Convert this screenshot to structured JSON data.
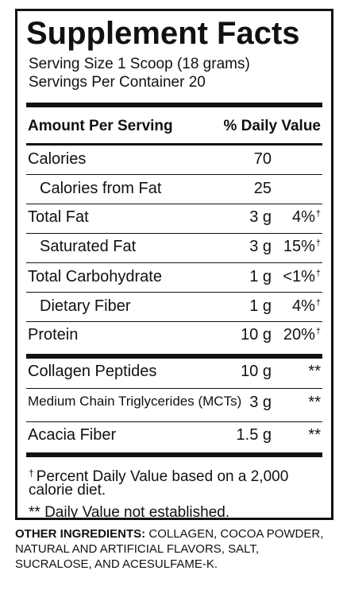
{
  "label": {
    "title": "Supplement Facts",
    "serving_size": "Serving Size 1 Scoop (18 grams)",
    "servings_per_container": "Servings Per Container 20",
    "header_amount": "Amount Per Serving",
    "header_dv": "% Daily Value",
    "rows": [
      {
        "name": "Calories",
        "amount": "70",
        "dv": "",
        "dagger": ""
      },
      {
        "name": "Calories from Fat",
        "amount": "25",
        "dv": "",
        "dagger": ""
      },
      {
        "name": "Total Fat",
        "amount": "3 g",
        "dv": "4%",
        "dagger": "†"
      },
      {
        "name": "Saturated Fat",
        "amount": "3 g",
        "dv": "15%",
        "dagger": "†"
      },
      {
        "name": "Total Carbohydrate",
        "amount": "1 g",
        "dv": "<1%",
        "dagger": "†"
      },
      {
        "name": "Dietary Fiber",
        "amount": "1 g",
        "dv": "4%",
        "dagger": "†"
      },
      {
        "name": "Protein",
        "amount": "10 g",
        "dv": "20%",
        "dagger": "†"
      },
      {
        "name": "Collagen Peptides",
        "amount": "10 g",
        "dv": "**",
        "dagger": ""
      },
      {
        "name": "Medium Chain Triglycerides (MCTs)",
        "amount": "3 g",
        "dv": "**",
        "dagger": ""
      },
      {
        "name": "Acacia Fiber",
        "amount": "1.5 g",
        "dv": "**",
        "dagger": ""
      }
    ],
    "footnote_symbol": "†",
    "footnote_dv_line1": "Percent Daily Value based on a 2,000",
    "footnote_dv_line2": "calorie diet.",
    "footnote_na": "** Daily Value not established."
  },
  "ingredients": {
    "heading": "OTHER INGREDIENTS:",
    "text": " COLLAGEN, COCOA POWDER, NATURAL AND ARTIFICIAL FLAVORS, SALT, SUCRALOSE, AND ACESULFAME-K."
  }
}
